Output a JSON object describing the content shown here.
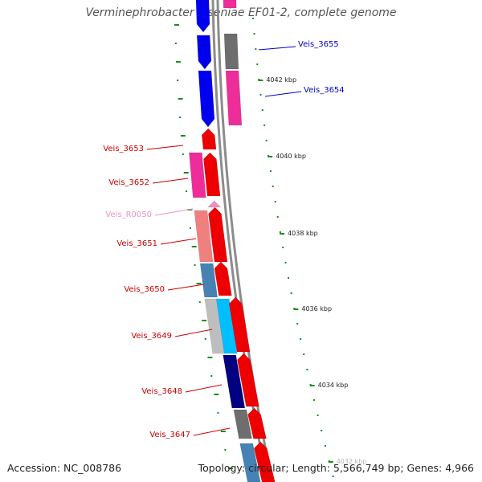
{
  "title": "Verminephrobacter eiseniae EF01-2, complete genome",
  "accession": "Accession: NC_008786",
  "topology": "Topology: circular; Length: 5,566,749 bp; Genes: 4,966",
  "colors": {
    "backbone": "#8c8c8c",
    "tick": "#1e8c1e",
    "label_forward": "#cc0000",
    "label_reverse": "#0000cc",
    "label_rna": "#f090c0"
  },
  "ticks": [
    {
      "label": "4042 kbp"
    },
    {
      "label": "4040 kbp"
    },
    {
      "label": "4038 kbp"
    },
    {
      "label": "4036 kbp"
    },
    {
      "label": "4034 kbp"
    },
    {
      "label": "4032 kbp"
    }
  ],
  "genes": [
    {
      "name": "Veis_3655",
      "strand": "reverse"
    },
    {
      "name": "Veis_3654",
      "strand": "reverse"
    },
    {
      "name": "Veis_3653",
      "strand": "forward"
    },
    {
      "name": "Veis_3652",
      "strand": "forward"
    },
    {
      "name": "Veis_R0050",
      "strand": "rna"
    },
    {
      "name": "Veis_3651",
      "strand": "forward"
    },
    {
      "name": "Veis_3650",
      "strand": "forward"
    },
    {
      "name": "Veis_3649",
      "strand": "forward"
    },
    {
      "name": "Veis_3648",
      "strand": "forward"
    },
    {
      "name": "Veis_3647",
      "strand": "forward"
    }
  ]
}
